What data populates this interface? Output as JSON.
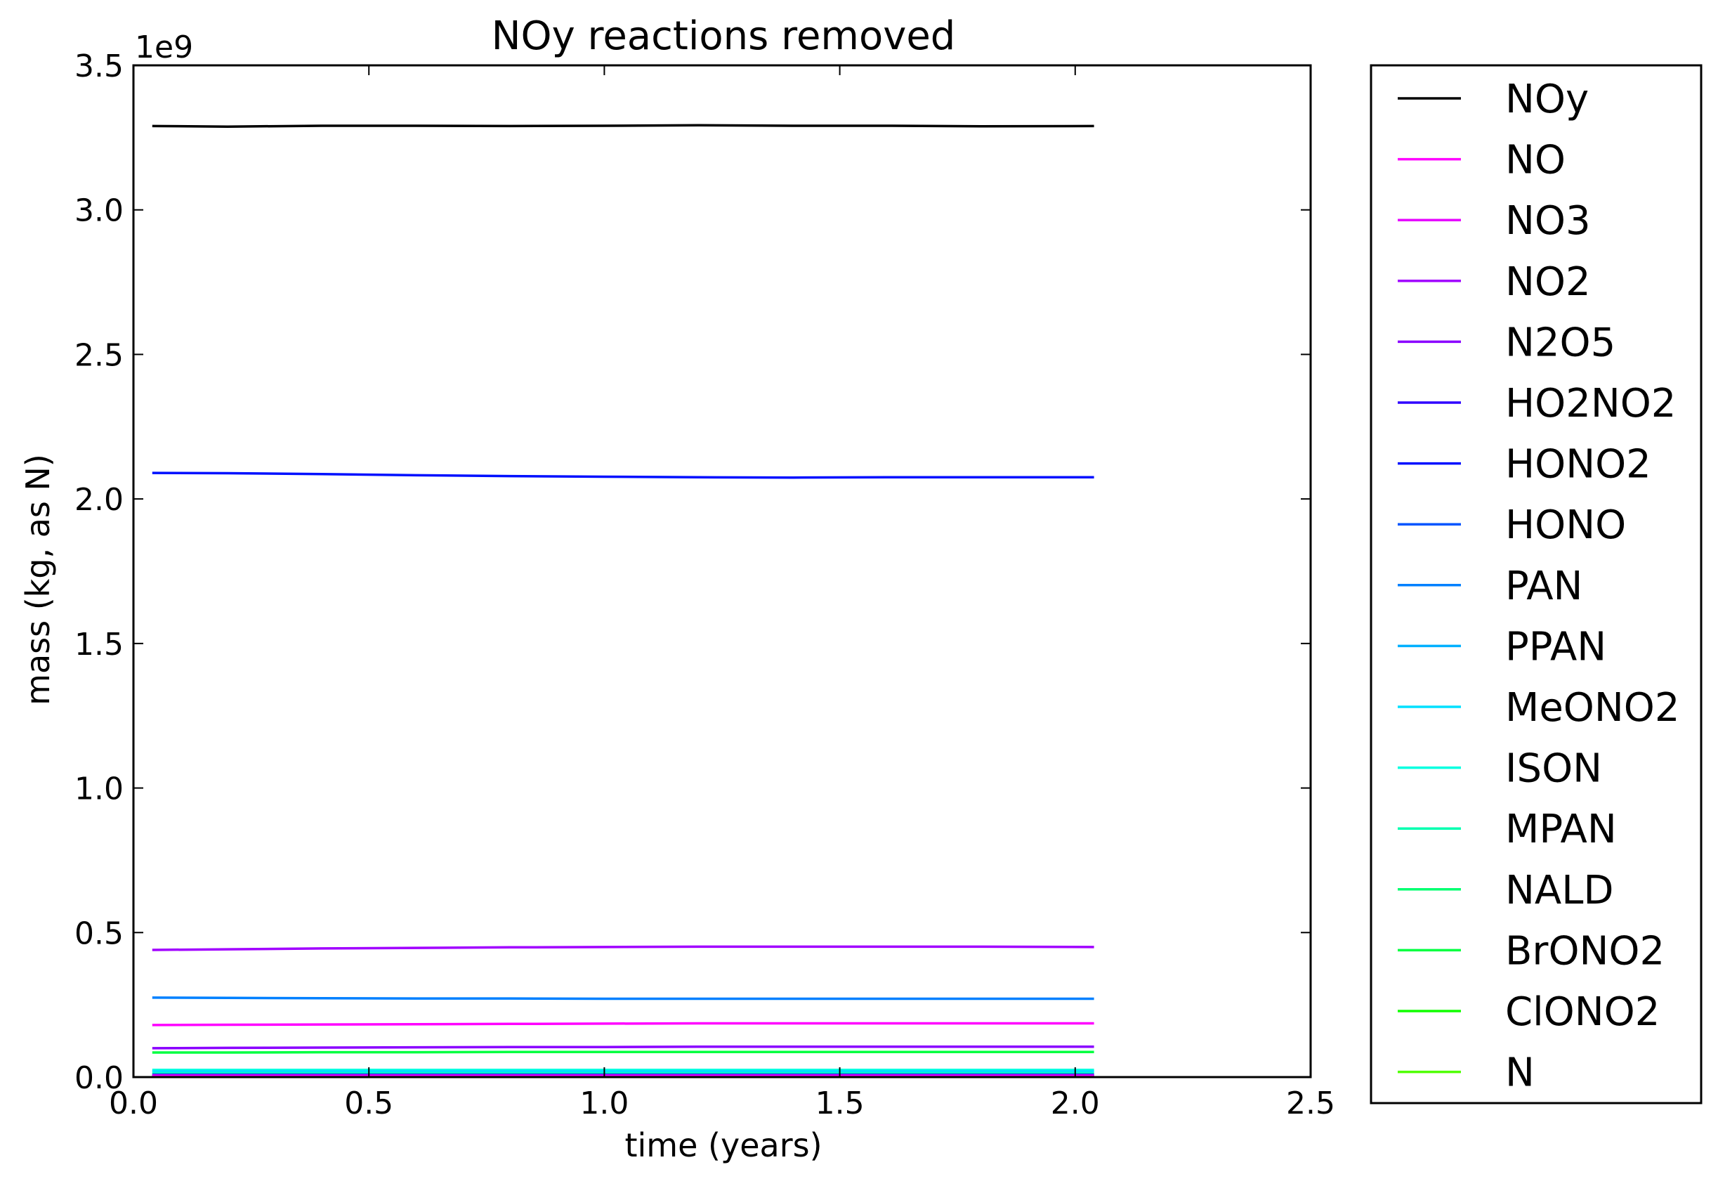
{
  "chart_data": {
    "type": "line",
    "title": "NOy reactions removed",
    "xlabel": "time (years)",
    "ylabel": "mass (kg, as N)",
    "y_offset_label": "1e9",
    "xlim": [
      0.0,
      2.5
    ],
    "ylim": [
      0.0,
      3.5
    ],
    "x_ticks": [
      "0.0",
      "0.5",
      "1.0",
      "1.5",
      "2.0",
      "2.5"
    ],
    "y_ticks": [
      "0.0",
      "0.5",
      "1.0",
      "1.5",
      "2.0",
      "2.5",
      "3.0",
      "3.5"
    ],
    "grid": false,
    "legend_position": "outside right",
    "x": [
      0.04,
      0.2,
      0.4,
      0.6,
      0.8,
      1.0,
      1.2,
      1.4,
      1.6,
      1.8,
      2.04
    ],
    "series": [
      {
        "name": "NOy",
        "color": "#000000",
        "values": [
          3.29,
          3.288,
          3.291,
          3.291,
          3.29,
          3.291,
          3.293,
          3.291,
          3.291,
          3.289,
          3.29
        ]
      },
      {
        "name": "NO",
        "color": "#ff00ff",
        "values": [
          0.18,
          0.181,
          0.182,
          0.183,
          0.184,
          0.185,
          0.186,
          0.186,
          0.186,
          0.186,
          0.186
        ]
      },
      {
        "name": "NO3",
        "color": "#e600ff",
        "values": [
          0.005,
          0.005,
          0.005,
          0.005,
          0.005,
          0.005,
          0.005,
          0.005,
          0.005,
          0.005,
          0.005
        ]
      },
      {
        "name": "NO2",
        "color": "#a100ff",
        "values": [
          0.44,
          0.442,
          0.445,
          0.447,
          0.449,
          0.45,
          0.451,
          0.451,
          0.451,
          0.451,
          0.45
        ]
      },
      {
        "name": "N2O5",
        "color": "#8a00ff",
        "values": [
          0.1,
          0.101,
          0.102,
          0.103,
          0.104,
          0.104,
          0.105,
          0.105,
          0.105,
          0.105,
          0.105
        ]
      },
      {
        "name": "HO2NO2",
        "color": "#2f00ff",
        "values": [
          0.008,
          0.008,
          0.008,
          0.008,
          0.008,
          0.008,
          0.008,
          0.008,
          0.008,
          0.008,
          0.008
        ]
      },
      {
        "name": "HONO2",
        "color": "#0010ff",
        "values": [
          2.09,
          2.089,
          2.086,
          2.082,
          2.079,
          2.077,
          2.075,
          2.074,
          2.075,
          2.075,
          2.075
        ]
      },
      {
        "name": "HONO",
        "color": "#0055ff",
        "values": [
          0.004,
          0.004,
          0.004,
          0.004,
          0.004,
          0.004,
          0.004,
          0.004,
          0.004,
          0.004,
          0.004
        ]
      },
      {
        "name": "PAN",
        "color": "#0080ff",
        "values": [
          0.275,
          0.274,
          0.273,
          0.272,
          0.272,
          0.271,
          0.271,
          0.271,
          0.271,
          0.271,
          0.271
        ]
      },
      {
        "name": "PPAN",
        "color": "#00b0ff",
        "values": [
          0.006,
          0.006,
          0.006,
          0.006,
          0.006,
          0.006,
          0.006,
          0.006,
          0.006,
          0.006,
          0.006
        ]
      },
      {
        "name": "MeONO2",
        "color": "#00e0ff",
        "values": [
          0.02,
          0.02,
          0.02,
          0.02,
          0.02,
          0.02,
          0.02,
          0.02,
          0.02,
          0.02,
          0.02
        ]
      },
      {
        "name": "ISON",
        "color": "#00ffe0",
        "values": [
          0.025,
          0.025,
          0.025,
          0.025,
          0.025,
          0.025,
          0.025,
          0.025,
          0.025,
          0.025,
          0.025
        ]
      },
      {
        "name": "MPAN",
        "color": "#00ffb0",
        "values": [
          0.015,
          0.015,
          0.015,
          0.015,
          0.015,
          0.015,
          0.015,
          0.015,
          0.015,
          0.015,
          0.015
        ]
      },
      {
        "name": "NALD",
        "color": "#00ff70",
        "values": [
          0.01,
          0.01,
          0.01,
          0.01,
          0.01,
          0.01,
          0.01,
          0.01,
          0.01,
          0.01,
          0.01
        ]
      },
      {
        "name": "BrONO2",
        "color": "#00ff40",
        "values": [
          0.085,
          0.085,
          0.086,
          0.086,
          0.087,
          0.087,
          0.087,
          0.087,
          0.087,
          0.087,
          0.087
        ]
      },
      {
        "name": "ClONO2",
        "color": "#10ff00",
        "values": [
          0.003,
          0.003,
          0.003,
          0.003,
          0.003,
          0.003,
          0.003,
          0.003,
          0.003,
          0.003,
          0.003
        ]
      },
      {
        "name": "N",
        "color": "#50ff00",
        "values": [
          0.001,
          0.001,
          0.001,
          0.001,
          0.001,
          0.001,
          0.001,
          0.001,
          0.001,
          0.001,
          0.001
        ]
      }
    ]
  }
}
